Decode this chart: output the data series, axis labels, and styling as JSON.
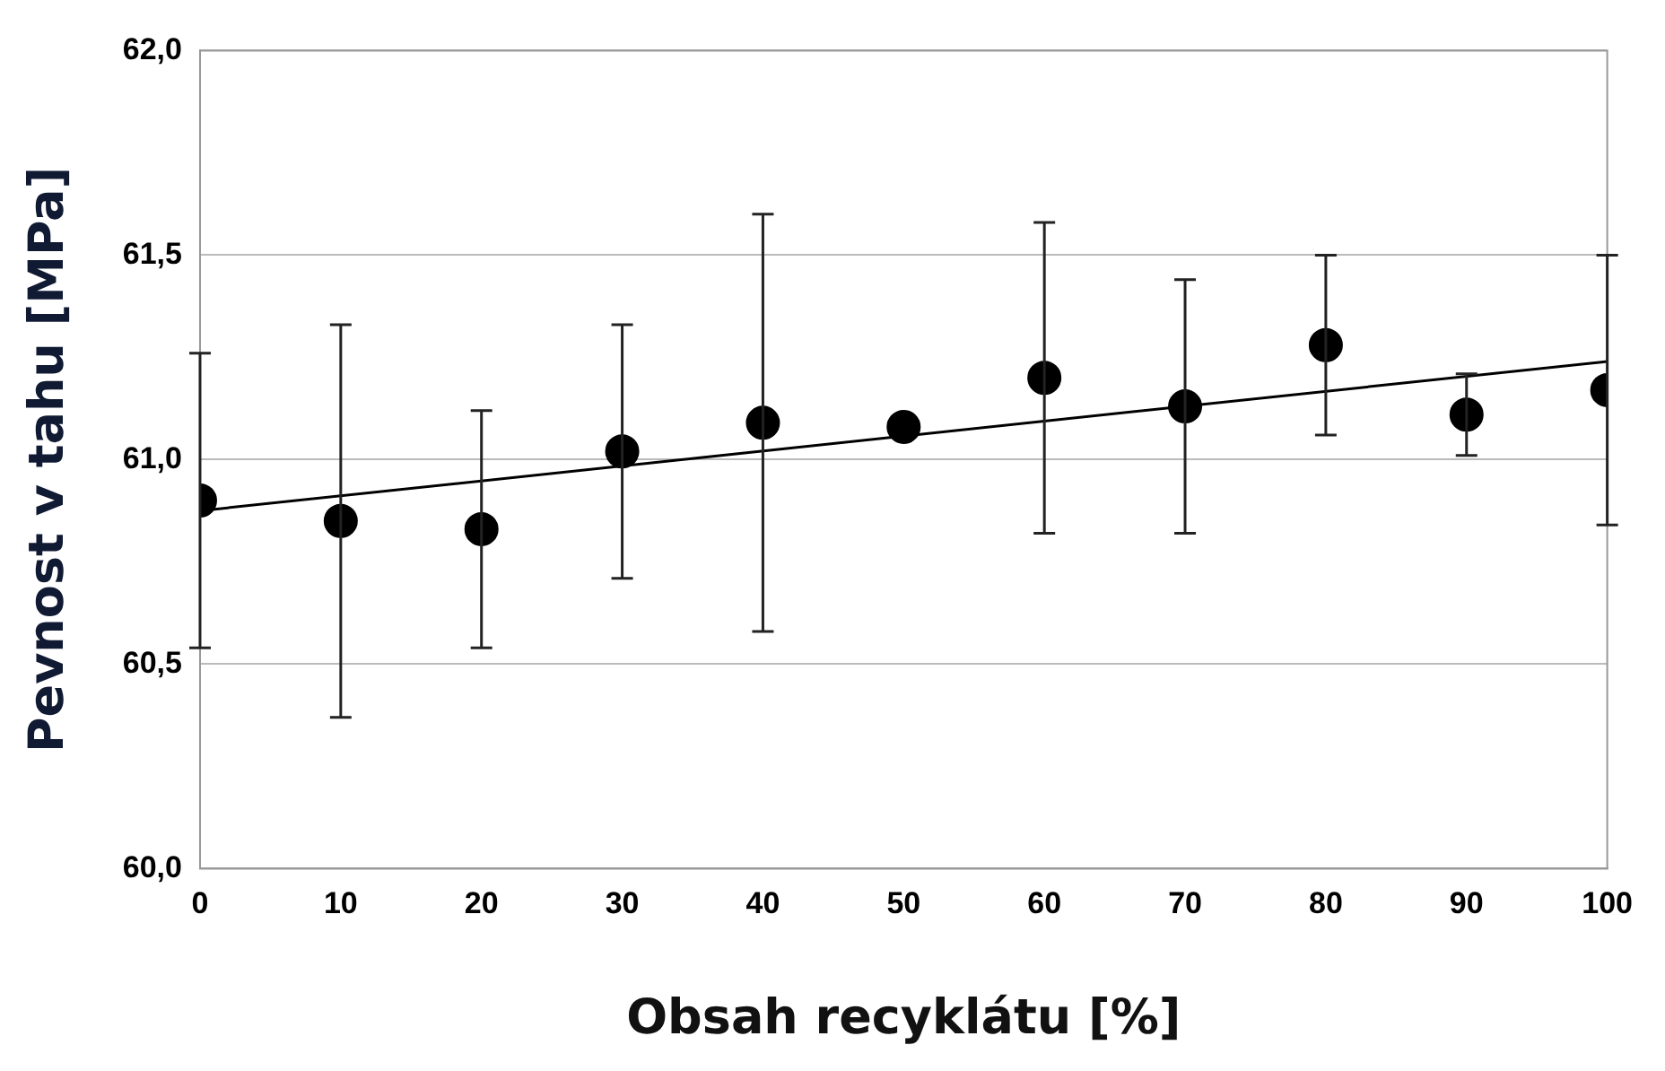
{
  "chart_data": {
    "type": "scatter",
    "xlabel": "Obsah recyklátu [%]",
    "ylabel": "Pevnost v tahu [MPa]",
    "xlim": [
      0,
      100
    ],
    "xticks": [
      0,
      10,
      20,
      30,
      40,
      50,
      60,
      70,
      80,
      90,
      100
    ],
    "ylim": [
      60,
      62
    ],
    "yticks": [
      {
        "value": 60,
        "label": "60,0"
      },
      {
        "value": 60.5,
        "label": "60,5"
      },
      {
        "value": 61,
        "label": "61,0"
      },
      {
        "value": 61.5,
        "label": "61,5"
      },
      {
        "value": 62,
        "label": "62,0"
      }
    ],
    "grid": "y",
    "legend": false,
    "series": [
      {
        "marker": "circle",
        "color": "#000000",
        "x": [
          0,
          10,
          20,
          30,
          40,
          50,
          60,
          70,
          80,
          90,
          100
        ],
        "values": [
          60.9,
          60.85,
          60.83,
          61.02,
          61.09,
          61.08,
          61.2,
          61.13,
          61.28,
          61.11,
          61.17
        ],
        "errors": [
          0.36,
          0.48,
          0.29,
          0.31,
          0.51,
          null,
          0.38,
          0.31,
          0.22,
          0.1,
          0.33
        ]
      },
      {
        "type": "line",
        "marker": "none",
        "color": "#000000",
        "x": [
          0,
          100
        ],
        "values": [
          60.875,
          61.24
        ]
      }
    ]
  }
}
